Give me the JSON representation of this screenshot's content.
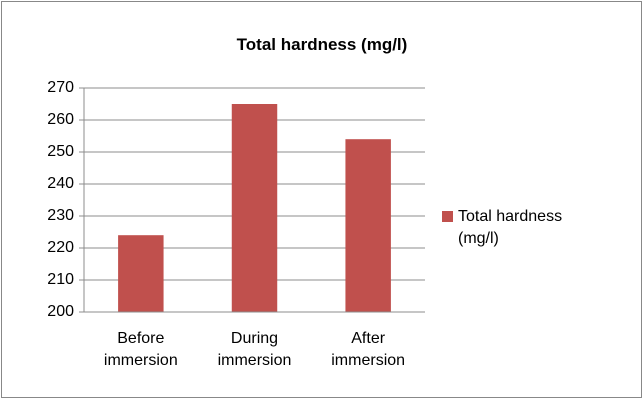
{
  "chart_data": {
    "type": "bar",
    "title": "Total hardness (mg/l)",
    "categories": [
      "Before immersion",
      "During immersion",
      "After immersion"
    ],
    "series": [
      {
        "name": "Total hardness (mg/l)",
        "color": "#c0504d",
        "values": [
          224,
          265,
          254
        ]
      }
    ],
    "ylim": [
      200,
      270
    ],
    "yticks": [
      200,
      210,
      220,
      230,
      240,
      250,
      260,
      270
    ],
    "grid": true,
    "legend": "right"
  }
}
